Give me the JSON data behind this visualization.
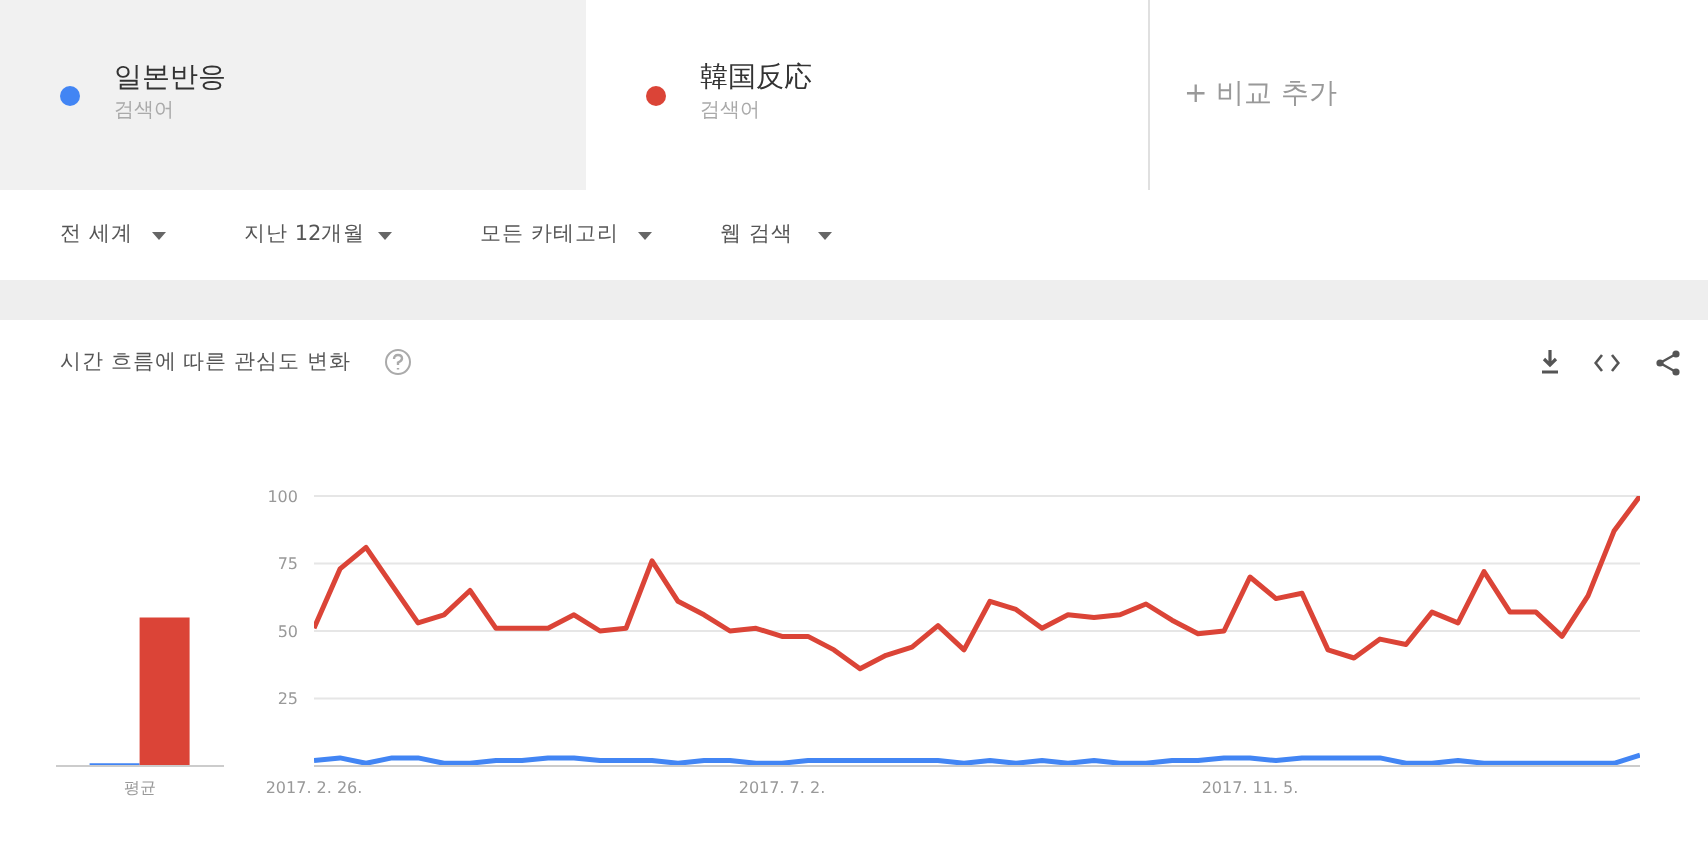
{
  "chart_data": [
    {
      "type": "bar",
      "title": "시간 흐름에 따른 관심도 변화",
      "categories": [
        "평균"
      ],
      "series": [
        {
          "color": "#4285f4",
          "values": [
            1
          ]
        },
        {
          "color": "#db4437",
          "values": [
            55
          ]
        }
      ],
      "ylim": [
        0,
        100
      ],
      "tick_labels": "x",
      "grid": false
    },
    {
      "type": "line",
      "annotations": [
        "검색어",
        "검색어",
        "+ 비교 추가",
        "전 세계",
        "지난 12개월",
        "모든 카테고리",
        "웹 검색"
      ],
      "x": [
        "2017-02-26",
        "2017-03-05",
        "2017-03-12",
        "2017-03-19",
        "2017-03-26",
        "2017-04-02",
        "2017-04-09",
        "2017-04-16",
        "2017-04-23",
        "2017-04-30",
        "2017-05-07",
        "2017-05-14",
        "2017-05-21",
        "2017-05-28",
        "2017-06-04",
        "2017-06-11",
        "2017-06-18",
        "2017-06-25",
        "2017-07-02",
        "2017-07-09",
        "2017-07-16",
        "2017-07-23",
        "2017-07-30",
        "2017-08-06",
        "2017-08-13",
        "2017-08-20",
        "2017-08-27",
        "2017-09-03",
        "2017-09-10",
        "2017-09-17",
        "2017-09-24",
        "2017-10-01",
        "2017-10-08",
        "2017-10-15",
        "2017-10-22",
        "2017-10-29",
        "2017-11-05",
        "2017-11-12",
        "2017-11-19",
        "2017-11-26",
        "2017-12-03",
        "2017-12-10",
        "2017-12-17",
        "2017-12-24",
        "2017-12-31",
        "2018-01-07",
        "2018-01-14",
        "2018-01-21",
        "2018-01-28",
        "2018-02-04",
        "2018-02-11",
        "2018-02-18"
      ],
      "series": [
        {
          "name": "일본반응",
          "color": "#4285f4",
          "values": [
            2,
            3,
            1,
            3,
            3,
            1,
            1,
            2,
            2,
            3,
            3,
            2,
            2,
            2,
            1,
            2,
            2,
            1,
            1,
            2,
            2,
            2,
            2,
            2,
            2,
            1,
            2,
            1,
            2,
            1,
            2,
            1,
            1,
            2,
            2,
            3,
            3,
            2,
            3,
            3,
            3,
            3,
            1,
            1,
            2,
            1,
            1,
            1,
            1,
            1,
            1,
            4
          ]
        },
        {
          "name": "韓国反応",
          "color": "#db4437",
          "values": [
            51,
            73,
            81,
            67,
            53,
            56,
            65,
            51,
            51,
            51,
            56,
            50,
            51,
            76,
            61,
            56,
            50,
            51,
            48,
            48,
            43,
            36,
            41,
            44,
            52,
            43,
            61,
            58,
            51,
            56,
            55,
            56,
            60,
            54,
            49,
            50,
            70,
            62,
            64,
            43,
            40,
            47,
            45,
            57,
            53,
            72,
            57,
            57,
            48,
            63,
            87,
            100
          ]
        }
      ],
      "xlim": [
        "2017-02-26",
        "2018-02-18"
      ],
      "xticks": [
        {
          "value": "2017-02-26",
          "label": "2017. 2. 26."
        },
        {
          "value": "2017-07-02",
          "label": "2017. 7. 2."
        },
        {
          "value": "2017-11-05",
          "label": "2017. 11. 5."
        }
      ],
      "ylim": [
        0,
        100
      ],
      "yticks": [
        {
          "value": 0,
          "label": null
        },
        25,
        50,
        75,
        100
      ],
      "grid": "y",
      "legend": "top",
      "marker": "none",
      "line_style": "solid"
    }
  ]
}
